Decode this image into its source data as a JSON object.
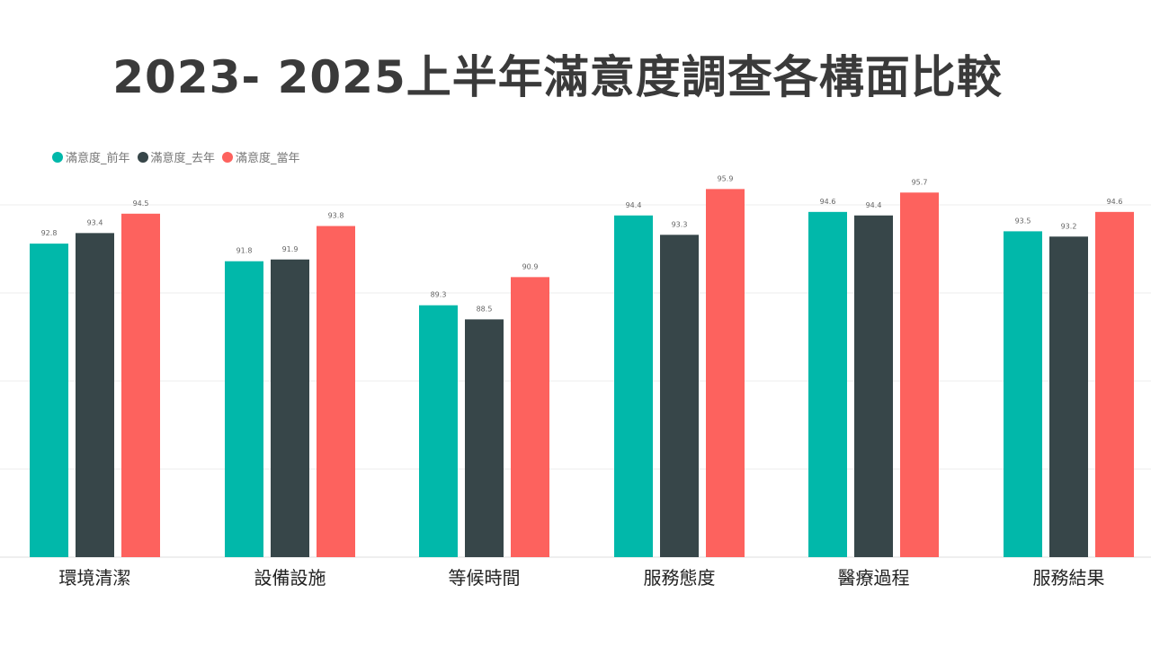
{
  "title": "2023- 2025上半年滿意度調查各構面比較",
  "chart_data": {
    "type": "bar",
    "title": "2023- 2025上半年滿意度調查各構面比較",
    "categories": [
      "環境清潔",
      "設備設施",
      "等候時間",
      "服務態度",
      "醫療過程",
      "服務結果"
    ],
    "series": [
      {
        "name": "滿意度_前年",
        "color": "#01b8aa",
        "values": [
          92.8,
          91.8,
          89.3,
          94.4,
          94.6,
          93.5
        ]
      },
      {
        "name": "滿意度_去年",
        "color": "#374649",
        "values": [
          93.4,
          91.9,
          88.5,
          93.3,
          94.4,
          93.2
        ]
      },
      {
        "name": "滿意度_當年",
        "color": "#fd625e",
        "values": [
          94.5,
          93.8,
          90.9,
          95.9,
          95.7,
          94.6
        ]
      }
    ],
    "ylim": [
      75,
      96
    ],
    "gridlines": true,
    "legend": "top-left",
    "xlabel": "",
    "ylabel": ""
  }
}
